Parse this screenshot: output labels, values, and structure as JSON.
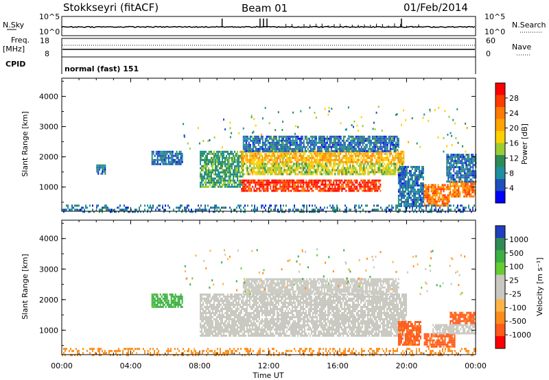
{
  "header": {
    "station": "Stokkseyri (fitACF)",
    "beam": "Beam 01",
    "date": "01/Feb/2014"
  },
  "summary_panel": {
    "nsky_label": "N.Sky",
    "nsearch_label": "N.Search",
    "freq_label": "Freq.",
    "freq_unit": "[MHz]",
    "nave_label": "Nave",
    "cpid_label": "CPID",
    "cpid_value": "normal (fast) 151",
    "noise_ticks_left": [
      "10^5",
      "10^0"
    ],
    "noise_ticks_right": [
      "10^5",
      "10^0"
    ],
    "freq_ticks": [
      "18",
      "8"
    ],
    "nave_ticks": [
      "60",
      "0"
    ]
  },
  "power_colorbar": {
    "label": "Power [dB]",
    "ticks": [
      "28",
      "24",
      "20",
      "16",
      "12",
      "8",
      "4"
    ],
    "colors": [
      "#ff0000",
      "#ff3b00",
      "#ff7a00",
      "#ffa500",
      "#ffd000",
      "#9acd32",
      "#2e8b57",
      "#1e90a0",
      "#1f4fbf",
      "#0000ff"
    ]
  },
  "velocity_colorbar": {
    "label": "Velocity [m s⁻¹]",
    "ticks": [
      "1000",
      "500",
      "100",
      "25",
      "-25",
      "-100",
      "-500",
      "-1000"
    ],
    "colors": [
      "#1f3fbf",
      "#2e8b57",
      "#3cb043",
      "#66cc33",
      "#c8c8c0",
      "#c8c8c0",
      "#ffb347",
      "#ff8c1a",
      "#ff5a1a",
      "#ff0000"
    ]
  },
  "chart_data": [
    {
      "type": "heatmap",
      "quantity": "Power",
      "ylabel": "Slant Range [km]",
      "xlabel": "Time UT",
      "ylim": [
        200,
        4600
      ],
      "xlim_hours": [
        0,
        24
      ],
      "y_ticks": [
        "4000",
        "3000",
        "2000",
        "1000"
      ],
      "x_ticks": [
        "00:00",
        "04:00",
        "08:00",
        "12:00",
        "16:00",
        "20:00",
        "00:00"
      ],
      "regions": [
        {
          "t0": 5.2,
          "t1": 7.0,
          "r0": 1750,
          "r1": 2200,
          "level": 8
        },
        {
          "t0": 2.0,
          "t1": 2.5,
          "r0": 1450,
          "r1": 1750,
          "level": 8
        },
        {
          "t0": 8.0,
          "t1": 10.5,
          "r0": 1000,
          "r1": 2200,
          "level": 12
        },
        {
          "t0": 10.4,
          "t1": 19.8,
          "r0": 1800,
          "r1": 2200,
          "level": 20
        },
        {
          "t0": 10.4,
          "t1": 19.8,
          "r0": 1400,
          "r1": 1800,
          "level": 16
        },
        {
          "t0": 10.4,
          "t1": 18.5,
          "r0": 850,
          "r1": 1250,
          "level": 28
        },
        {
          "t0": 10.5,
          "t1": 19.5,
          "r0": 2200,
          "r1": 2700,
          "level": 8
        },
        {
          "t0": 19.5,
          "t1": 21.0,
          "r0": 400,
          "r1": 1700,
          "level": 8
        },
        {
          "t0": 21.0,
          "t1": 22.5,
          "r0": 400,
          "r1": 1100,
          "level": 24
        },
        {
          "t0": 22.5,
          "t1": 24.0,
          "r0": 700,
          "r1": 1200,
          "level": 24
        },
        {
          "t0": 22.3,
          "t1": 24.0,
          "r0": 1200,
          "r1": 2100,
          "level": 8
        },
        {
          "t0": 0.0,
          "t1": 24.0,
          "r0": 200,
          "r1": 420,
          "level": 8
        }
      ]
    },
    {
      "type": "heatmap",
      "quantity": "Velocity",
      "ylabel": "Slant Range [km]",
      "xlabel": "Time UT",
      "ylim": [
        200,
        4600
      ],
      "xlim_hours": [
        0,
        24
      ],
      "y_ticks": [
        "4000",
        "3000",
        "2000",
        "1000"
      ],
      "x_ticks": [
        "00:00",
        "04:00",
        "08:00",
        "12:00",
        "16:00",
        "20:00",
        "00:00"
      ],
      "regions": [
        {
          "t0": 5.2,
          "t1": 7.0,
          "r0": 1750,
          "r1": 2200,
          "v": 100
        },
        {
          "t0": 8.0,
          "t1": 20.0,
          "r0": 850,
          "r1": 2200,
          "v": 0
        },
        {
          "t0": 10.5,
          "t1": 19.5,
          "r0": 2200,
          "r1": 2700,
          "v": 0
        },
        {
          "t0": 19.5,
          "t1": 20.8,
          "r0": 500,
          "r1": 1300,
          "v": -500
        },
        {
          "t0": 21.0,
          "t1": 22.8,
          "r0": 450,
          "r1": 900,
          "v": -500
        },
        {
          "t0": 22.5,
          "t1": 24.0,
          "r0": 1200,
          "r1": 1600,
          "v": -500
        },
        {
          "t0": 21.5,
          "t1": 24.0,
          "r0": 900,
          "r1": 1200,
          "v": 0
        },
        {
          "t0": 0.0,
          "t1": 24.0,
          "r0": 200,
          "r1": 420,
          "v": -100
        }
      ]
    }
  ]
}
